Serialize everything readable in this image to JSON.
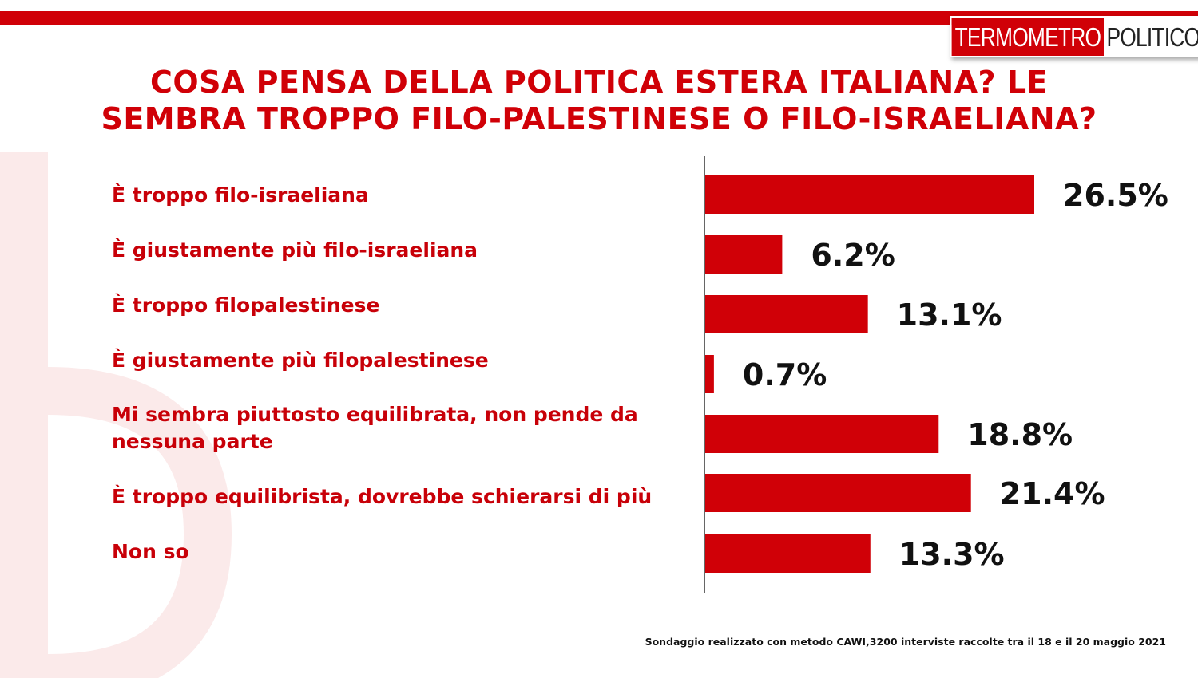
{
  "header": {
    "logo_left": "TERMOMETRO",
    "logo_right": "POLITICO",
    "title_line1": "COSA PENSA DELLA POLITICA ESTERA ITALIANA? LE",
    "title_line2": "SEMBRA TROPPO FILO-PALESTINESE O FILO-ISRAELIANA?"
  },
  "colors": {
    "brand_red": "#d00007",
    "label_red": "#c80008",
    "value_text": "#111111"
  },
  "chart_data": {
    "type": "bar",
    "orientation": "horizontal",
    "categories": [
      "È troppo filo-israeliana",
      "È giustamente più filo-israeliana",
      "È troppo filopalestinese",
      "È giustamente più filopalestinese",
      "Mi sembra piuttosto equilibrata, non pende da nessuna parte",
      "È troppo equilibrista, dovrebbe schierarsi di più",
      "Non so"
    ],
    "values": [
      26.5,
      6.2,
      13.1,
      0.7,
      18.8,
      21.4,
      13.3
    ],
    "value_labels": [
      "26.5%",
      "6.2%",
      "13.1%",
      "0.7%",
      "18.8%",
      "21.4%",
      "13.3%"
    ],
    "xlim": [
      0,
      26.5
    ],
    "grid": false,
    "legend": "none",
    "bar_color": "#d00007"
  },
  "footer": {
    "note": "Sondaggio realizzato con metodo CAWI,3200 interviste raccolte tra il 18  e il 20 maggio 2021"
  }
}
